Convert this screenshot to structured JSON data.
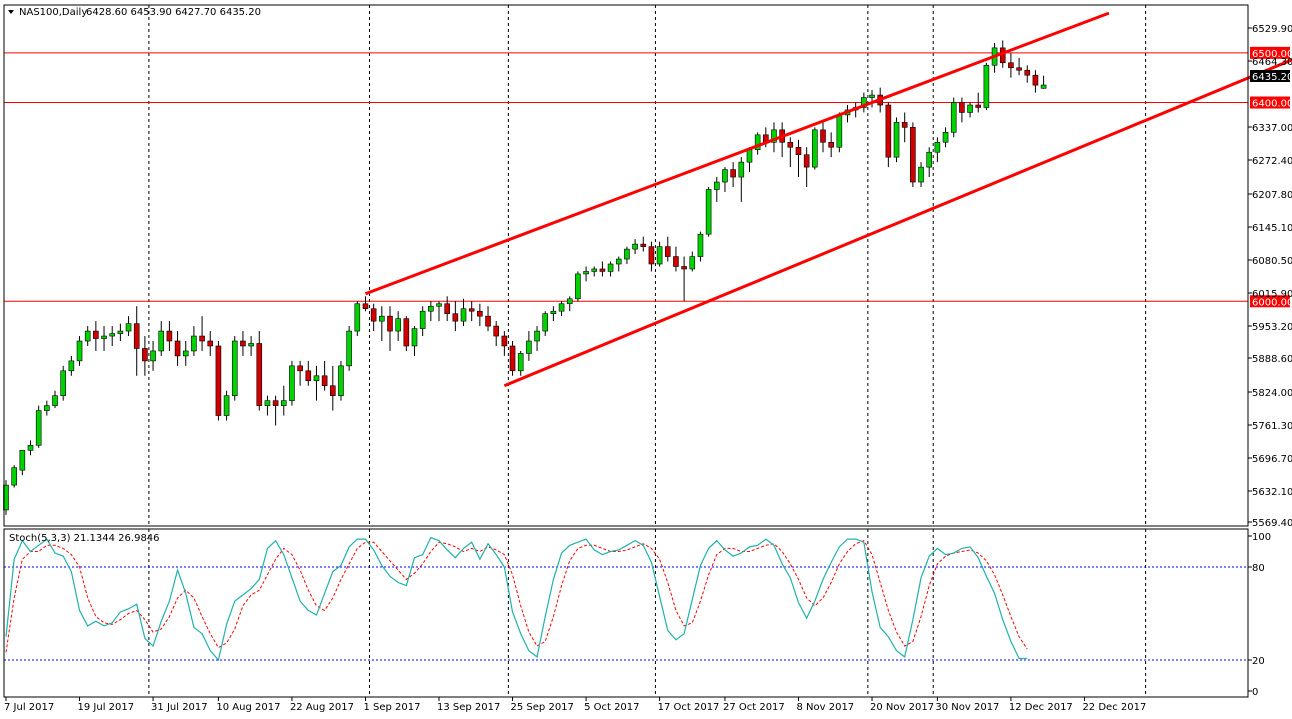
{
  "chart_data": [
    {
      "type": "candlestick",
      "header": {
        "symbol": "NAS100,Daily",
        "ohlc": "6428.60 6453.90 6427.70 6435.20"
      },
      "ylim": [
        5550,
        6580
      ],
      "price_ticks": [
        "6529.90",
        "6464.30",
        "6337.00",
        "6272.40",
        "6207.80",
        "6145.10",
        "6080.50",
        "6015.90",
        "5953.20",
        "5888.60",
        "5824.00",
        "5761.30",
        "5696.70",
        "5632.10",
        "5569.40"
      ],
      "date_labels": [
        "7 Jul 2017",
        "19 Jul 2017",
        "31 Jul 2017",
        "10 Aug 2017",
        "22 Aug 2017",
        "1 Sep 2017",
        "13 Sep 2017",
        "25 Sep 2017",
        "5 Oct 2017",
        "17 Oct 2017",
        "27 Oct 2017",
        "8 Nov 2017",
        "20 Nov 2017",
        "30 Nov 2017",
        "12 Dec 2017",
        "22 Dec 2017"
      ],
      "date_label_bar_index": [
        0,
        9,
        18,
        26,
        35,
        44,
        53,
        62,
        71,
        80,
        88,
        97,
        106,
        114,
        123,
        132
      ],
      "separator_bar_index": [
        17,
        44,
        61,
        79,
        105,
        113,
        139
      ],
      "horizontal_levels": [
        {
          "value": 6500,
          "label": "6500.00",
          "color": "#ff0000"
        },
        {
          "value": 6400,
          "label": "6400.00",
          "color": "#ff0000"
        },
        {
          "value": 6000,
          "label": "6000.00",
          "color": "#ff0000"
        }
      ],
      "current_price": {
        "value": 6435.2,
        "label": "6435.20"
      },
      "channel_lines": [
        {
          "name": "upper-channel",
          "from": {
            "bar": 44,
            "value": 6015
          },
          "to": {
            "bar": 135,
            "value": 6580
          }
        },
        {
          "name": "lower-channel",
          "from": {
            "bar": 61,
            "value": 5830
          },
          "to": {
            "bar": 158,
            "value": 6490
          }
        }
      ],
      "colors": {
        "up": "#00d200",
        "down": "#d00000",
        "wick": "#000000",
        "level": "#ff0000",
        "channel": "#ff0000",
        "grid": "#000000",
        "stoch_main": "#20b2aa",
        "stoch_signal": "#ff0000",
        "stoch_level": "#0000ff"
      },
      "candles": [
        [
          5580,
          5640,
          5570,
          5630
        ],
        [
          5630,
          5670,
          5625,
          5665
        ],
        [
          5660,
          5700,
          5650,
          5700
        ],
        [
          5700,
          5720,
          5690,
          5710
        ],
        [
          5710,
          5790,
          5705,
          5780
        ],
        [
          5780,
          5800,
          5770,
          5790
        ],
        [
          5790,
          5820,
          5785,
          5810
        ],
        [
          5810,
          5870,
          5800,
          5860
        ],
        [
          5860,
          5890,
          5850,
          5880
        ],
        [
          5880,
          5930,
          5870,
          5920
        ],
        [
          5920,
          5950,
          5910,
          5940
        ],
        [
          5940,
          5960,
          5900,
          5925
        ],
        [
          5925,
          5950,
          5900,
          5930
        ],
        [
          5930,
          5950,
          5910,
          5935
        ],
        [
          5935,
          5955,
          5920,
          5940
        ],
        [
          5940,
          5970,
          5930,
          5955
        ],
        [
          5955,
          5990,
          5850,
          5905
        ],
        [
          5905,
          5930,
          5850,
          5880
        ],
        [
          5880,
          5920,
          5860,
          5900
        ],
        [
          5900,
          5960,
          5890,
          5940
        ],
        [
          5940,
          5960,
          5900,
          5920
        ],
        [
          5920,
          5940,
          5870,
          5890
        ],
        [
          5890,
          5920,
          5870,
          5900
        ],
        [
          5900,
          5950,
          5890,
          5930
        ],
        [
          5930,
          5970,
          5900,
          5920
        ],
        [
          5920,
          5940,
          5890,
          5910
        ],
        [
          5910,
          5920,
          5760,
          5770
        ],
        [
          5770,
          5820,
          5760,
          5810
        ],
        [
          5810,
          5930,
          5800,
          5920
        ],
        [
          5920,
          5940,
          5890,
          5910
        ],
        [
          5910,
          5930,
          5890,
          5915
        ],
        [
          5915,
          5940,
          5780,
          5790
        ],
        [
          5790,
          5810,
          5770,
          5800
        ],
        [
          5800,
          5810,
          5750,
          5790
        ],
        [
          5790,
          5830,
          5770,
          5800
        ],
        [
          5800,
          5880,
          5790,
          5870
        ],
        [
          5870,
          5880,
          5830,
          5860
        ],
        [
          5860,
          5880,
          5830,
          5840
        ],
        [
          5840,
          5870,
          5800,
          5850
        ],
        [
          5850,
          5880,
          5820,
          5830
        ],
        [
          5830,
          5870,
          5780,
          5810
        ],
        [
          5810,
          5880,
          5800,
          5870
        ],
        [
          5870,
          5950,
          5860,
          5940
        ],
        [
          5940,
          6000,
          5930,
          5995
        ],
        [
          5995,
          6010,
          5980,
          5985
        ],
        [
          5985,
          5995,
          5940,
          5960
        ],
        [
          5960,
          5990,
          5920,
          5970
        ],
        [
          5970,
          5990,
          5900,
          5940
        ],
        [
          5940,
          5980,
          5920,
          5965
        ],
        [
          5965,
          5970,
          5900,
          5910
        ],
        [
          5910,
          5950,
          5890,
          5945
        ],
        [
          5945,
          5990,
          5930,
          5980
        ],
        [
          5980,
          6000,
          5960,
          5990
        ],
        [
          5990,
          6000,
          5960,
          5995
        ],
        [
          5995,
          6010,
          5960,
          5975
        ],
        [
          5975,
          6000,
          5940,
          5960
        ],
        [
          5960,
          6005,
          5950,
          5985
        ],
        [
          5985,
          6000,
          5960,
          5980
        ],
        [
          5980,
          5995,
          5950,
          5970
        ],
        [
          5970,
          5990,
          5940,
          5950
        ],
        [
          5950,
          5960,
          5910,
          5930
        ],
        [
          5930,
          5940,
          5890,
          5910
        ],
        [
          5910,
          5920,
          5850,
          5860
        ],
        [
          5860,
          5900,
          5850,
          5895
        ],
        [
          5895,
          5940,
          5880,
          5920
        ],
        [
          5920,
          5950,
          5900,
          5940
        ],
        [
          5940,
          5980,
          5930,
          5975
        ],
        [
          5975,
          5990,
          5960,
          5980
        ],
        [
          5980,
          6000,
          5970,
          5995
        ],
        [
          5995,
          6010,
          5980,
          6005
        ],
        [
          6005,
          6060,
          6000,
          6055
        ],
        [
          6055,
          6070,
          6040,
          6060
        ],
        [
          6060,
          6070,
          6050,
          6065
        ],
        [
          6065,
          6080,
          6050,
          6060
        ],
        [
          6060,
          6080,
          6050,
          6075
        ],
        [
          6075,
          6090,
          6060,
          6085
        ],
        [
          6085,
          6110,
          6075,
          6105
        ],
        [
          6105,
          6125,
          6095,
          6115
        ],
        [
          6115,
          6130,
          6100,
          6110
        ],
        [
          6110,
          6120,
          6060,
          6075
        ],
        [
          6075,
          6120,
          6070,
          6110
        ],
        [
          6110,
          6130,
          6080,
          6090
        ],
        [
          6090,
          6110,
          6060,
          6070
        ],
        [
          6070,
          6090,
          6000,
          6065
        ],
        [
          6065,
          6100,
          6060,
          6090
        ],
        [
          6090,
          6140,
          6080,
          6135
        ],
        [
          6135,
          6230,
          6130,
          6225
        ],
        [
          6225,
          6250,
          6200,
          6240
        ],
        [
          6240,
          6270,
          6220,
          6265
        ],
        [
          6265,
          6280,
          6230,
          6250
        ],
        [
          6250,
          6290,
          6200,
          6280
        ],
        [
          6280,
          6310,
          6260,
          6305
        ],
        [
          6305,
          6340,
          6295,
          6335
        ],
        [
          6335,
          6350,
          6310,
          6320
        ],
        [
          6320,
          6360,
          6300,
          6345
        ],
        [
          6345,
          6360,
          6290,
          6320
        ],
        [
          6320,
          6330,
          6270,
          6310
        ],
        [
          6310,
          6325,
          6250,
          6295
        ],
        [
          6295,
          6310,
          6230,
          6270
        ],
        [
          6270,
          6350,
          6265,
          6345
        ],
        [
          6345,
          6360,
          6300,
          6320
        ],
        [
          6320,
          6340,
          6290,
          6310
        ],
        [
          6310,
          6380,
          6300,
          6375
        ],
        [
          6375,
          6395,
          6360,
          6385
        ],
        [
          6385,
          6400,
          6370,
          6390
        ],
        [
          6390,
          6420,
          6380,
          6410
        ],
        [
          6410,
          6425,
          6390,
          6415
        ],
        [
          6415,
          6430,
          6380,
          6395
        ],
        [
          6395,
          6400,
          6270,
          6290
        ],
        [
          6290,
          6370,
          6280,
          6360
        ],
        [
          6360,
          6380,
          6320,
          6350
        ],
        [
          6350,
          6360,
          6230,
          6240
        ],
        [
          6240,
          6280,
          6230,
          6270
        ],
        [
          6270,
          6310,
          6250,
          6300
        ],
        [
          6300,
          6330,
          6280,
          6320
        ],
        [
          6320,
          6350,
          6310,
          6340
        ],
        [
          6340,
          6410,
          6330,
          6400
        ],
        [
          6400,
          6410,
          6360,
          6380
        ],
        [
          6380,
          6400,
          6370,
          6395
        ],
        [
          6395,
          6420,
          6380,
          6390
        ],
        [
          6390,
          6480,
          6385,
          6475
        ],
        [
          6475,
          6520,
          6460,
          6510
        ],
        [
          6510,
          6525,
          6470,
          6480
        ],
        [
          6480,
          6500,
          6450,
          6470
        ],
        [
          6470,
          6490,
          6455,
          6465
        ],
        [
          6465,
          6475,
          6440,
          6455
        ],
        [
          6455,
          6465,
          6420,
          6435
        ],
        [
          6428.6,
          6453.9,
          6427.7,
          6435.2
        ]
      ],
      "stochastic": {
        "label": "Stoch(5,3,3) 21.1344 26.9846",
        "ylim": [
          0,
          100
        ],
        "levels": [
          20,
          80
        ],
        "level_labels": [
          "100",
          "80",
          "20",
          "0"
        ],
        "main": [
          35,
          85,
          97,
          90,
          94,
          98,
          89,
          87,
          77,
          52,
          42,
          45,
          42,
          44,
          51,
          53,
          56,
          34,
          29,
          45,
          58,
          78,
          63,
          41,
          37,
          26,
          20,
          43,
          58,
          62,
          66,
          72,
          92,
          97,
          88,
          73,
          58,
          52,
          49,
          63,
          77,
          81,
          93,
          98,
          98,
          91,
          81,
          74,
          70,
          68,
          86,
          88,
          99,
          97,
          91,
          86,
          92,
          96,
          85,
          95,
          88,
          80,
          51,
          37,
          26,
          22,
          48,
          72,
          89,
          94,
          96,
          98,
          91,
          88,
          90,
          91,
          94,
          97,
          94,
          83,
          61,
          39,
          33,
          37,
          59,
          81,
          92,
          97,
          91,
          87,
          89,
          93,
          94,
          98,
          94,
          82,
          73,
          57,
          47,
          58,
          72,
          83,
          93,
          98,
          98,
          96,
          64,
          41,
          35,
          26,
          22,
          46,
          73,
          87,
          92,
          88,
          89,
          92,
          93,
          86,
          74,
          63,
          46,
          32,
          21,
          21
        ],
        "signal": [
          25,
          60,
          85,
          90,
          90,
          94,
          94,
          92,
          88,
          80,
          60,
          48,
          44,
          43,
          46,
          50,
          52,
          46,
          38,
          40,
          48,
          60,
          65,
          60,
          48,
          37,
          28,
          31,
          40,
          55,
          62,
          65,
          75,
          85,
          92,
          88,
          78,
          65,
          55,
          52,
          60,
          72,
          82,
          92,
          96,
          96,
          90,
          84,
          78,
          72,
          76,
          82,
          90,
          96,
          95,
          93,
          90,
          92,
          90,
          93,
          91,
          88,
          75,
          55,
          38,
          29,
          32,
          48,
          68,
          84,
          92,
          94,
          94,
          92,
          90,
          90,
          91,
          93,
          95,
          92,
          85,
          70,
          52,
          42,
          44,
          58,
          75,
          88,
          92,
          92,
          90,
          90,
          92,
          94,
          95,
          90,
          82,
          72,
          60,
          55,
          60,
          70,
          82,
          90,
          95,
          97,
          88,
          70,
          52,
          38,
          29,
          32,
          48,
          68,
          82,
          87,
          89,
          90,
          91,
          89,
          84,
          75,
          62,
          48,
          35,
          27
        ]
      }
    }
  ]
}
